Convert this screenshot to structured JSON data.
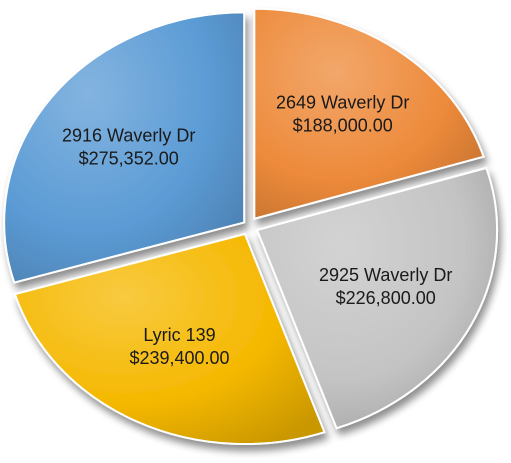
{
  "chart_data": {
    "type": "pie",
    "title": "",
    "labels": [
      "2649 Waverly Dr",
      "2925 Waverly Dr",
      "Lyric 139",
      "2916 Waverly Dr"
    ],
    "values": [
      188000.0,
      226800.0,
      239400.0,
      275352.0
    ],
    "value_labels": [
      "$188,000.00",
      "$226,800.00",
      "$239,400.00",
      "$275,352.00"
    ],
    "colors": [
      "#ED8A3A",
      "#C4C4C4",
      "#F5B800",
      "#5B9BD5"
    ],
    "style": "3d-exploded",
    "start": "top",
    "direction": "clockwise",
    "legend": "none",
    "data_labels": "inside"
  }
}
